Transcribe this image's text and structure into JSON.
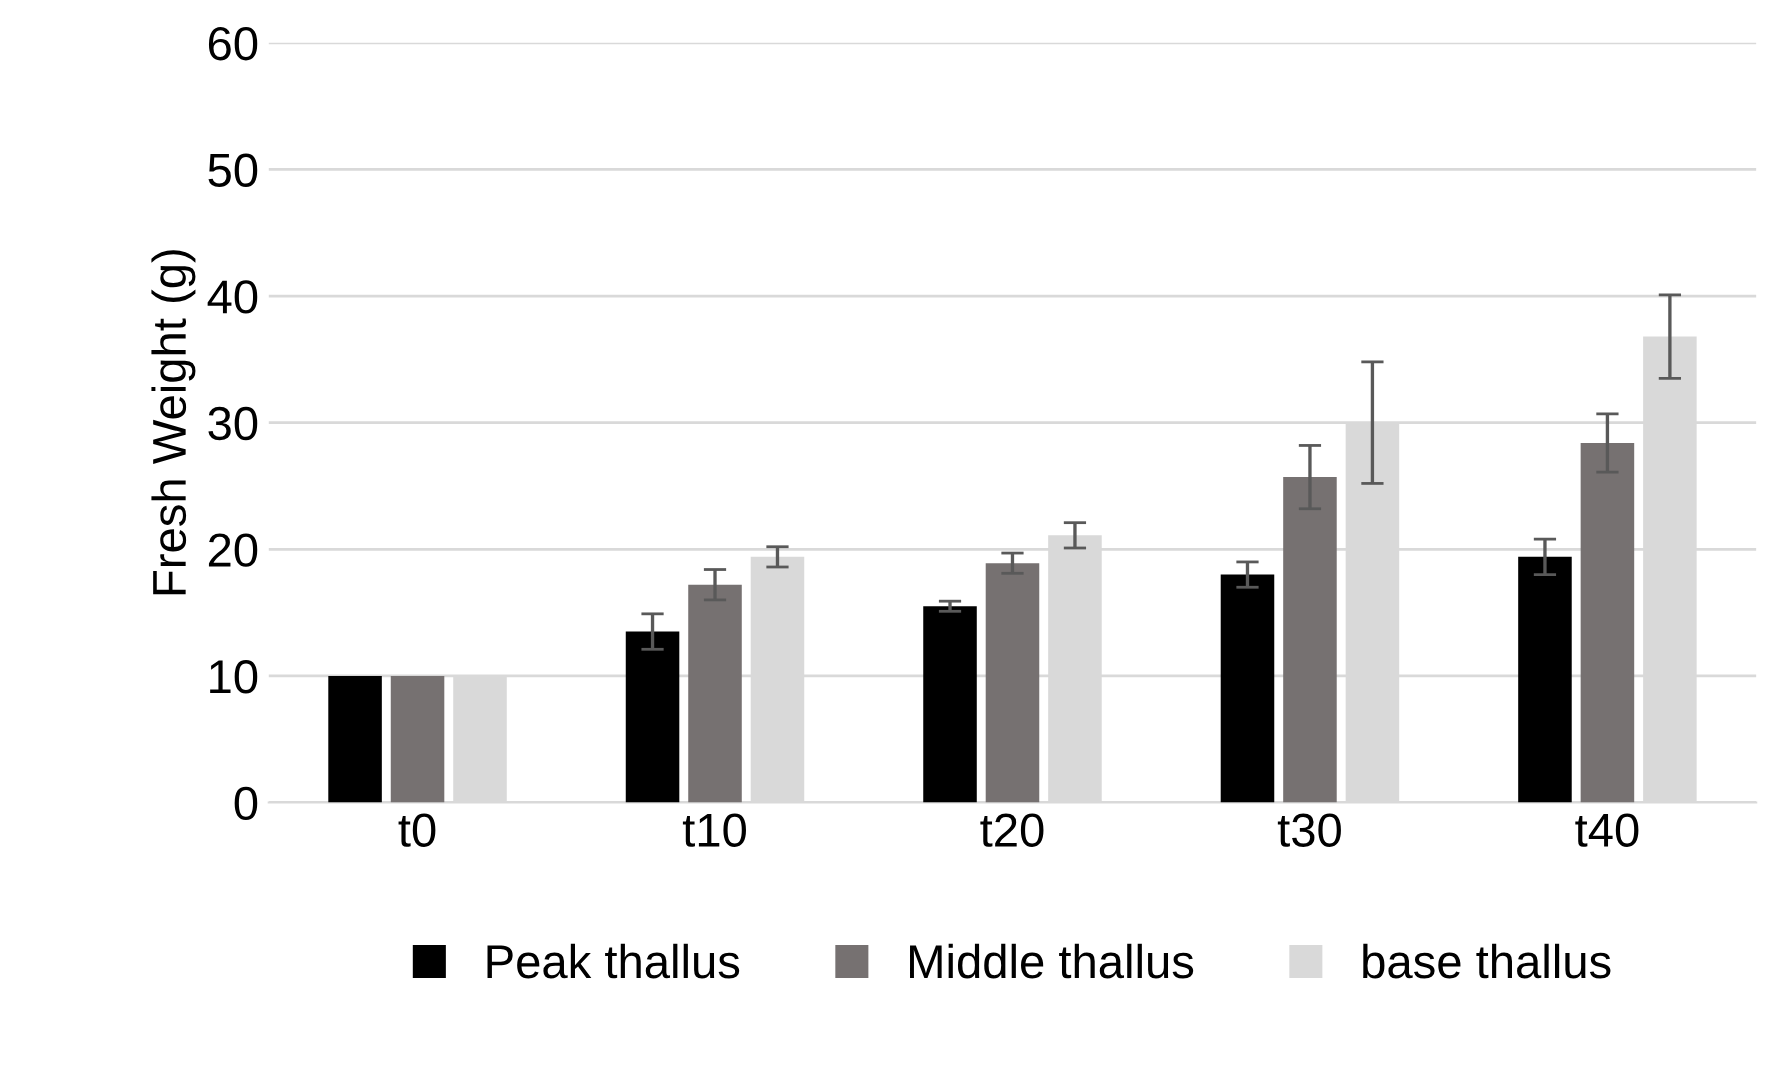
{
  "chart_data": {
    "type": "bar",
    "ylabel": "Fresh Weight (g)",
    "categories": [
      "t0",
      "t10",
      "t20",
      "t30",
      "t40"
    ],
    "series": [
      {
        "name": "Peak thallus",
        "color": "#000000",
        "values": [
          10,
          13.5,
          15.5,
          18,
          19.4
        ],
        "errors": [
          null,
          1.4,
          0.4,
          1.0,
          1.4
        ]
      },
      {
        "name": "Middle thallus",
        "color": "#767171",
        "values": [
          10,
          17.2,
          18.9,
          25.7,
          28.4
        ],
        "errors": [
          null,
          1.2,
          0.8,
          2.5,
          2.3
        ]
      },
      {
        "name": "base thallus",
        "color": "#d9d9d9",
        "values": [
          10,
          19.4,
          21.1,
          30,
          36.8
        ],
        "errors": [
          null,
          0.8,
          1.0,
          4.8,
          3.3
        ]
      }
    ],
    "ylim": [
      0,
      60
    ],
    "yticks": [
      0,
      10,
      20,
      30,
      40,
      50,
      60
    ],
    "grid": "y",
    "legend": "bottom"
  }
}
